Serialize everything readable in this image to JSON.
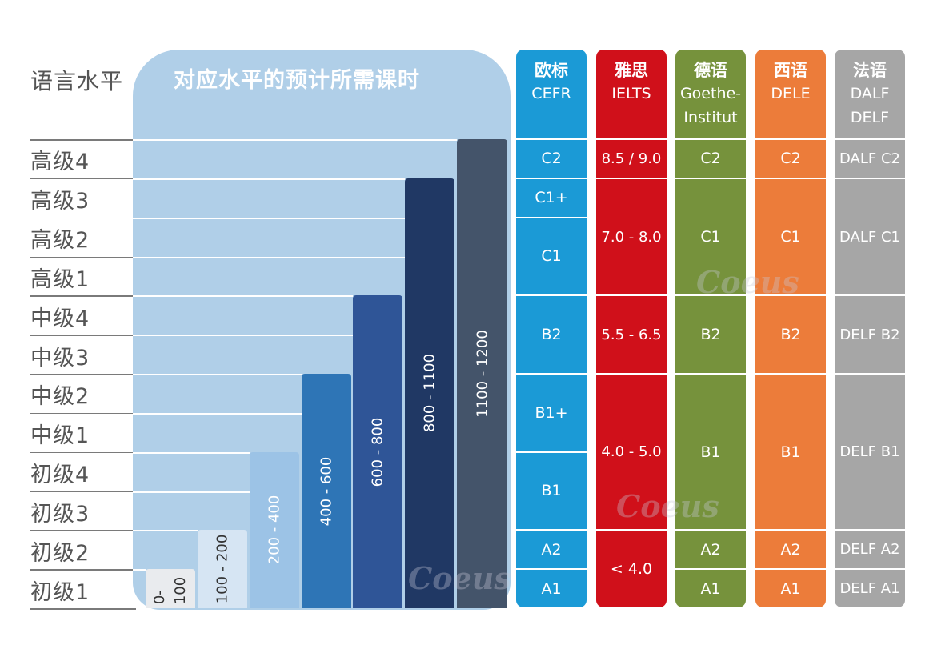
{
  "axis_title": "语言水平",
  "panel_title": "对应水平的预计所需课时",
  "levels": [
    "高级4",
    "高级3",
    "高级2",
    "高级1",
    "中级4",
    "中级3",
    "中级2",
    "中级1",
    "初级4",
    "初级3",
    "初级2",
    "初级1"
  ],
  "chart_data": {
    "type": "bar",
    "title": "对应水平的预计所需课时",
    "ylabel": "语言水平",
    "categories": [
      "0-100",
      "100 - 200",
      "200 - 400",
      "400 - 600",
      "600 - 800",
      "800 - 1100",
      "1100 - 1200"
    ],
    "reached_level": [
      "初级1",
      "初级2",
      "初级4",
      "中级2",
      "中级4",
      "高级3",
      "高级4"
    ],
    "colors": [
      "#e9ebee",
      "#d6e5f3",
      "#9cc3e6",
      "#2e75b6",
      "#2f5597",
      "#203864",
      "#44546a"
    ]
  },
  "bar_labels": [
    "0-\n100",
    "100 - 200",
    "200 - 400",
    "400 - 600",
    "600 - 800",
    "800 - 1100",
    "1100 - 1200"
  ],
  "columns": [
    {
      "head_zh": "欧标",
      "head_sub": "CEFR",
      "color": "#1b9ad6",
      "cells": [
        {
          "text": "C2",
          "span": 1
        },
        {
          "text": "C1+",
          "span": 1
        },
        {
          "text": "C1",
          "span": 2
        },
        {
          "text": "B2",
          "span": 2
        },
        {
          "text": "B1+",
          "span": 2
        },
        {
          "text": "B1",
          "span": 2
        },
        {
          "text": "A2",
          "span": 1
        },
        {
          "text": "A1",
          "span": 1
        }
      ]
    },
    {
      "head_zh": "雅思",
      "head_sub": "IELTS",
      "color": "#d0101a",
      "cells": [
        {
          "text": "8.5 / 9.0",
          "span": 1
        },
        {
          "text": "7.0 - 8.0",
          "span": 3
        },
        {
          "text": "5.5 - 6.5",
          "span": 2
        },
        {
          "text": "4.0 - 5.0",
          "span": 4
        },
        {
          "text": "< 4.0",
          "span": 2
        }
      ]
    },
    {
      "head_zh": "德语",
      "head_sub": "Goethe-\nInstitut",
      "color": "#76923c",
      "cells": [
        {
          "text": "C2",
          "span": 1
        },
        {
          "text": "C1",
          "span": 3
        },
        {
          "text": "B2",
          "span": 2
        },
        {
          "text": "B1",
          "span": 4
        },
        {
          "text": "A2",
          "span": 1
        },
        {
          "text": "A1",
          "span": 1
        }
      ]
    },
    {
      "head_zh": "西语",
      "head_sub": "DELE",
      "color": "#ec7c3a",
      "cells": [
        {
          "text": "C2",
          "span": 1
        },
        {
          "text": "C1",
          "span": 3
        },
        {
          "text": "B2",
          "span": 2
        },
        {
          "text": "B1",
          "span": 4
        },
        {
          "text": "A2",
          "span": 1
        },
        {
          "text": "A1",
          "span": 1
        }
      ]
    },
    {
      "head_zh": "法语",
      "head_sub": "DALF\nDELF",
      "color": "#a6a6a6",
      "cells": [
        {
          "text": "DALF C2",
          "span": 1
        },
        {
          "text": "DALF C1",
          "span": 3
        },
        {
          "text": "DELF B2",
          "span": 2
        },
        {
          "text": "DELF B1",
          "span": 4
        },
        {
          "text": "DELF A2",
          "span": 1
        },
        {
          "text": "DELF A1",
          "span": 1
        }
      ]
    }
  ],
  "watermark": "Coeus"
}
